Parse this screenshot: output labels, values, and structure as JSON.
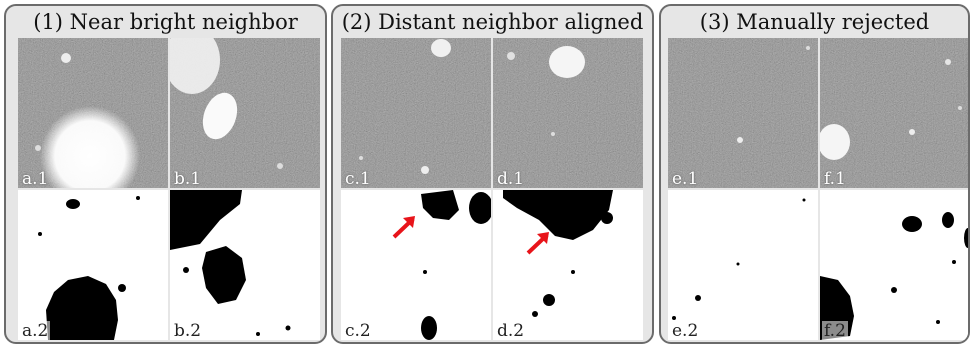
{
  "panels": [
    {
      "title": "(1) Near bright neighbor",
      "cells": {
        "noise_a": "a.1",
        "noise_b": "b.1",
        "mask_a": "a.2",
        "mask_b": "b.2"
      }
    },
    {
      "title": "(2) Distant neighbor aligned",
      "cells": {
        "noise_a": "c.1",
        "noise_b": "d.1",
        "mask_a": "c.2",
        "mask_b": "d.2"
      }
    },
    {
      "title": "(3) Manually rejected",
      "cells": {
        "noise_a": "e.1",
        "noise_b": "f.1",
        "mask_a": "e.2",
        "mask_b": "f.2"
      }
    }
  ],
  "colors": {
    "arrow": "#e8141a",
    "mask": "#000000",
    "background": "#ffffff"
  },
  "icons": [
    "red-arrow-icon"
  ]
}
